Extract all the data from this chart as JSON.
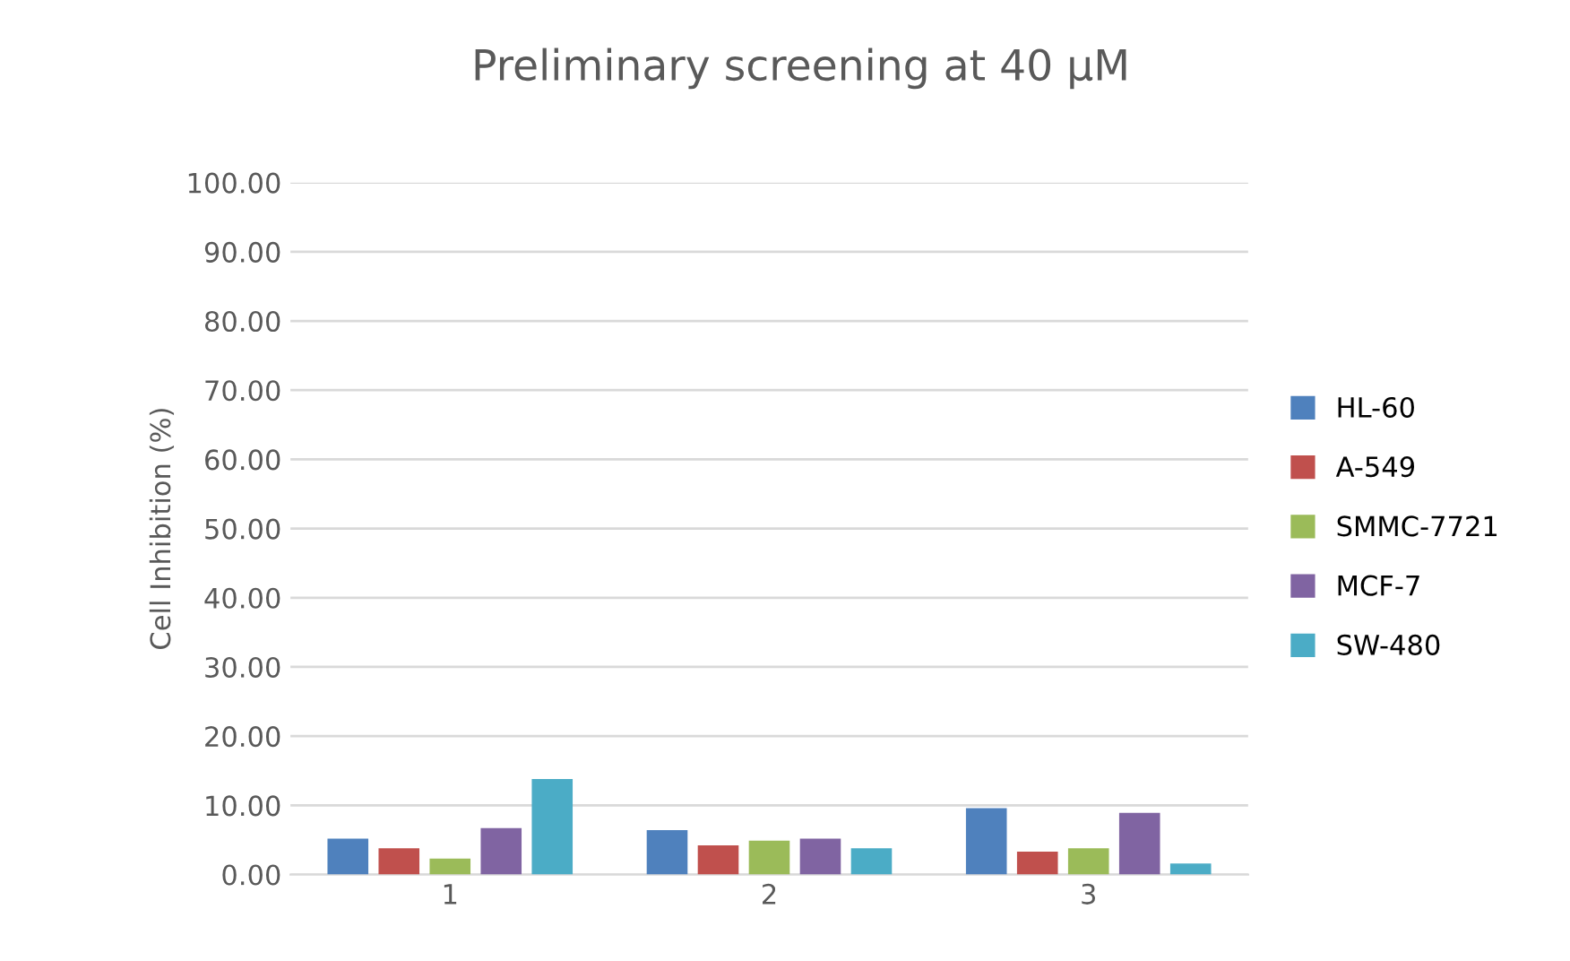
{
  "chart_data": {
    "type": "bar",
    "title": "Preliminary screening at 40 μM",
    "ylabel": "Cell Inhibition (%)",
    "categories": [
      "1",
      "2",
      "3"
    ],
    "series": [
      {
        "name": "HL-60",
        "color": "#4f81bd",
        "values": [
          5.2,
          6.4,
          9.6
        ]
      },
      {
        "name": "A-549",
        "color": "#c0504d",
        "values": [
          3.8,
          4.2,
          3.3
        ]
      },
      {
        "name": "SMMC-7721",
        "color": "#9bbb59",
        "values": [
          2.3,
          4.9,
          3.8
        ]
      },
      {
        "name": "MCF-7",
        "color": "#8064a2",
        "values": [
          6.7,
          5.2,
          8.9
        ]
      },
      {
        "name": "SW-480",
        "color": "#4bacc6",
        "values": [
          13.8,
          3.8,
          1.6
        ]
      }
    ],
    "ylim": [
      0,
      100
    ],
    "yticks": [
      {
        "value": 0,
        "label": "0.00"
      },
      {
        "value": 10,
        "label": "10.00"
      },
      {
        "value": 20,
        "label": "20.00"
      },
      {
        "value": 30,
        "label": "30.00"
      },
      {
        "value": 40,
        "label": "40.00"
      },
      {
        "value": 50,
        "label": "50.00"
      },
      {
        "value": 60,
        "label": "60.00"
      },
      {
        "value": 70,
        "label": "70.00"
      },
      {
        "value": 80,
        "label": "80.00"
      },
      {
        "value": 90,
        "label": "90.00"
      },
      {
        "value": 100,
        "label": "100.00"
      }
    ],
    "grid": "y",
    "legend": "right"
  }
}
